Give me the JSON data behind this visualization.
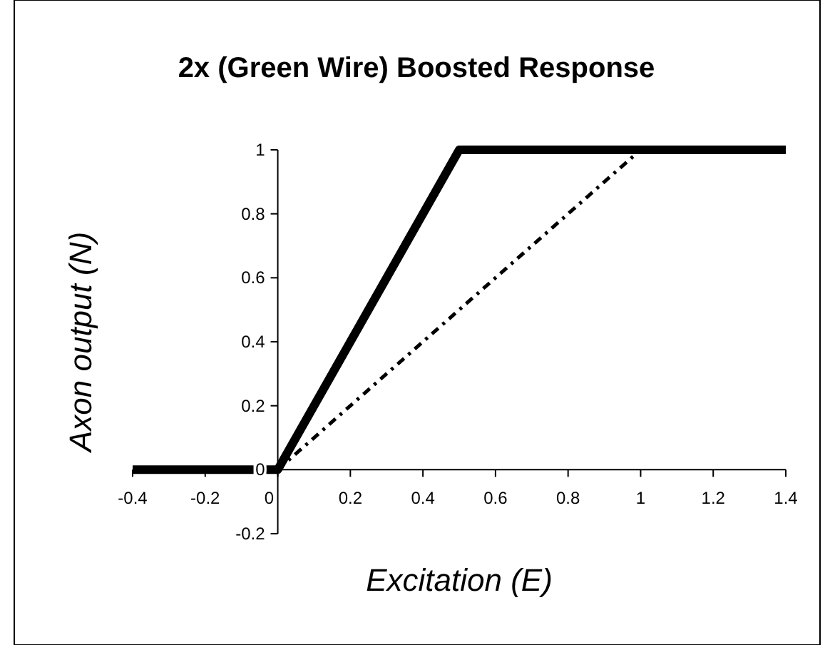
{
  "chart_data": {
    "type": "line",
    "title": "2x (Green Wire) Boosted Response",
    "xlabel": "Excitation (E)",
    "ylabel": "Axon output (N)",
    "xlim": [
      -0.4,
      1.4
    ],
    "xticks": [
      -0.4,
      -0.2,
      0,
      0.2,
      0.4,
      0.6,
      0.8,
      1,
      1.2,
      1.4
    ],
    "ylim": [
      -0.2,
      1
    ],
    "yticks": [
      -0.2,
      0,
      0.2,
      0.4,
      0.6,
      0.8,
      1
    ],
    "grid": false,
    "marker": "none",
    "series": [
      {
        "color": "#000000",
        "line_style": "dotted",
        "x": [
          0,
          1
        ],
        "values": [
          0,
          1
        ]
      },
      {
        "color": "#000000",
        "line_style": "solid",
        "x": [
          -0.4,
          0,
          0.5,
          1.4
        ],
        "values": [
          0,
          0,
          1,
          1
        ]
      }
    ]
  }
}
